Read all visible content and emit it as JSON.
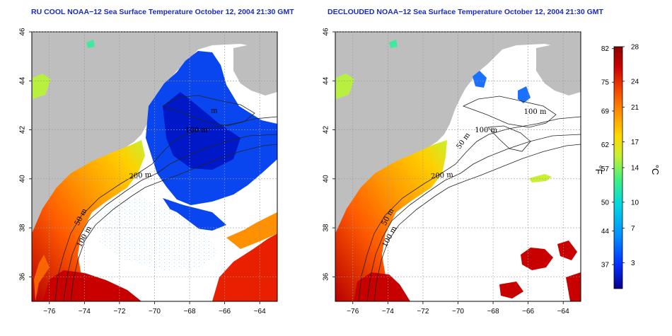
{
  "panels": [
    {
      "title": "RU COOL NOAA−12 Sea Surface Temperature October 12, 2004 21:30 GMT",
      "variant": "raw",
      "contour_labels": [
        {
          "text": "50 m",
          "lon": -74.1,
          "lat": 38.4,
          "angle": -62
        },
        {
          "text": "100 m",
          "lon": -73.9,
          "lat": 37.6,
          "angle": -62
        },
        {
          "text": "200 m",
          "lon": -70.8,
          "lat": 40.05,
          "angle": -5
        },
        {
          "text": "100 m",
          "lon": -67.6,
          "lat": 41.9,
          "angle": 0
        },
        {
          "text": "m",
          "lon": -66.6,
          "lat": 42.7,
          "angle": 0
        }
      ]
    },
    {
      "title": "DECLOUDED NOAA−12 Sea Surface Temperature October 12, 2004 21:30 GMT",
      "variant": "declouded",
      "contour_labels": [
        {
          "text": "50 m",
          "lon": -73.9,
          "lat": 38.4,
          "angle": -62
        },
        {
          "text": "100 m",
          "lon": -73.8,
          "lat": 37.6,
          "angle": -62
        },
        {
          "text": "200 m",
          "lon": -70.9,
          "lat": 40.05,
          "angle": -5
        },
        {
          "text": "100 m",
          "lon": -68.4,
          "lat": 41.9,
          "angle": 0
        },
        {
          "text": "50 m",
          "lon": -69.6,
          "lat": 41.5,
          "angle": -55
        },
        {
          "text": "100 m",
          "lon": -65.6,
          "lat": 42.65,
          "angle": 0
        }
      ]
    }
  ],
  "map": {
    "lon_range": [
      -77,
      -63
    ],
    "lat_range": [
      35,
      46
    ],
    "lon_ticks": [
      -76,
      -74,
      -72,
      -70,
      -68,
      -66,
      -64
    ],
    "lat_ticks": [
      36,
      38,
      40,
      42,
      44,
      46
    ]
  },
  "colorbar": {
    "celsius_range": [
      0,
      28
    ],
    "fahrenheit_ticks": [
      37,
      44,
      50,
      57,
      62,
      69,
      75,
      82
    ],
    "celsius_ticks": [
      3,
      7,
      10,
      14,
      17,
      21,
      24,
      28
    ],
    "fahrenheit_unit": "°F",
    "celsius_unit": "°C"
  },
  "colors": {
    "land": "#bebebe",
    "cloud": "#ffffff",
    "title": "#1a2bbf",
    "scale": [
      "#08008c",
      "#0030ff",
      "#0090ff",
      "#00d8e0",
      "#40f080",
      "#c8f030",
      "#ffd800",
      "#ff9000",
      "#f04000",
      "#c80000",
      "#8c0000"
    ]
  }
}
